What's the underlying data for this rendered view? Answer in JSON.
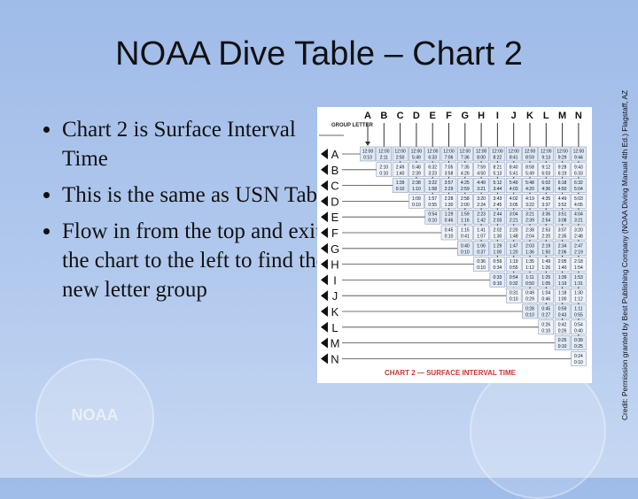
{
  "slide": {
    "title": "NOAA Dive Table – Chart 2",
    "bullets": [
      "Chart 2 is Surface Interval Time",
      "This is the same as USN Tables",
      "Flow in from the top and exit the chart to the left to find the new letter group"
    ],
    "credit": "Credit: Permission granted by Best Publishing Company (NOAA Diving Manual 4th Ed.) Flagstaff, AZ",
    "logo_text": "NOAA"
  },
  "table": {
    "group_header": "GROUP LETTER",
    "caption": "CHART 2 — SURFACE INTERVAL TIME",
    "column_letters": [
      "A",
      "B",
      "C",
      "D",
      "E",
      "F",
      "G",
      "H",
      "I",
      "J",
      "K",
      "L",
      "M",
      "N"
    ],
    "group_letters": [
      "A",
      "B",
      "C",
      "D",
      "E",
      "F",
      "G",
      "H",
      "I",
      "J",
      "K",
      "L",
      "M",
      "N"
    ],
    "rows": [
      [
        [
          "12:00",
          "0:10"
        ],
        [
          "12:00",
          "2:11"
        ],
        [
          "12:00",
          "2:50"
        ],
        [
          "12:00",
          "5:49"
        ],
        [
          "12:00",
          "6:33"
        ],
        [
          "12:00",
          "7:06"
        ],
        [
          "12:00",
          "7:36"
        ],
        [
          "12:00",
          "8:00"
        ],
        [
          "12:00",
          "8:22"
        ],
        [
          "12:00",
          "8:41"
        ],
        [
          "12:00",
          "8:59"
        ],
        [
          "12:00",
          "9:13"
        ],
        [
          "12:00",
          "9:29"
        ],
        [
          "12:00",
          "9:44"
        ]
      ],
      [
        [
          "2:10",
          "0:10"
        ],
        [
          "2:49",
          "1:40"
        ],
        [
          "5:48",
          "2:39"
        ],
        [
          "6:32",
          "3:23"
        ],
        [
          "7:05",
          "3:58"
        ],
        [
          "7:35",
          "4:26"
        ],
        [
          "7:59",
          "4:50"
        ],
        [
          "8:21",
          "5:13"
        ],
        [
          "8:40",
          "5:41"
        ],
        [
          "8:58",
          "5:49"
        ],
        [
          "9:12",
          "6:03"
        ],
        [
          "9:28",
          "6:19"
        ],
        [
          "9:43",
          "6:33"
        ]
      ],
      [
        [
          "1:39",
          "0:10"
        ],
        [
          "2:38",
          "1:10"
        ],
        [
          "3:22",
          "1:58"
        ],
        [
          "3:57",
          "2:29"
        ],
        [
          "4:25",
          "2:59"
        ],
        [
          "4:49",
          "3:21"
        ],
        [
          "5:12",
          "3:44"
        ],
        [
          "5:40",
          "4:03"
        ],
        [
          "5:48",
          "4:20"
        ],
        [
          "6:02",
          "4:36"
        ],
        [
          "6:18",
          "4:50"
        ],
        [
          "6:32",
          "5:04"
        ]
      ],
      [
        [
          "1:09",
          "0:10"
        ],
        [
          "1:57",
          "0:55"
        ],
        [
          "2:28",
          "1:30"
        ],
        [
          "2:58",
          "2:00"
        ],
        [
          "3:20",
          "2:24"
        ],
        [
          "3:43",
          "2:45"
        ],
        [
          "4:02",
          "3:05"
        ],
        [
          "4:19",
          "3:22"
        ],
        [
          "4:35",
          "3:37"
        ],
        [
          "4:49",
          "3:52"
        ],
        [
          "5:03",
          "4:05"
        ]
      ],
      [
        [
          "0:54",
          "0:10"
        ],
        [
          "1:29",
          "0:46"
        ],
        [
          "1:59",
          "1:16"
        ],
        [
          "2:23",
          "1:42"
        ],
        [
          "2:44",
          "2:03"
        ],
        [
          "3:04",
          "2:21"
        ],
        [
          "3:21",
          "2:39"
        ],
        [
          "3:36",
          "2:54"
        ],
        [
          "3:51",
          "3:08"
        ],
        [
          "4:04",
          "3:21"
        ]
      ],
      [
        [
          "0:45",
          "0:10"
        ],
        [
          "1:15",
          "0:41"
        ],
        [
          "1:41",
          "1:07"
        ],
        [
          "2:02",
          "1:30"
        ],
        [
          "2:20",
          "1:48"
        ],
        [
          "2:38",
          "2:04"
        ],
        [
          "2:53",
          "2:20"
        ],
        [
          "3:07",
          "2:35"
        ],
        [
          "3:20",
          "2:48"
        ]
      ],
      [
        [
          "0:40",
          "0:10"
        ],
        [
          "1:06",
          "0:37"
        ],
        [
          "1:29",
          "1:00"
        ],
        [
          "1:47",
          "1:20"
        ],
        [
          "2:03",
          "1:36"
        ],
        [
          "2:19",
          "1:50"
        ],
        [
          "2:34",
          "2:06"
        ],
        [
          "2:47",
          "2:19"
        ]
      ],
      [
        [
          "0:36",
          "0:10"
        ],
        [
          "0:59",
          "0:34"
        ],
        [
          "1:19",
          "0:55"
        ],
        [
          "1:35",
          "1:12"
        ],
        [
          "1:49",
          "1:26"
        ],
        [
          "2:05",
          "1:40"
        ],
        [
          "2:18",
          "1:54"
        ]
      ],
      [
        [
          "0:33",
          "0:10"
        ],
        [
          "0:54",
          "0:32"
        ],
        [
          "1:11",
          "0:50"
        ],
        [
          "1:25",
          "1:05"
        ],
        [
          "1:39",
          "1:19"
        ],
        [
          "1:53",
          "1:31"
        ]
      ],
      [
        [
          "0:31",
          "0:10"
        ],
        [
          "0:49",
          "0:29"
        ],
        [
          "1:04",
          "0:46"
        ],
        [
          "1:18",
          "1:00"
        ],
        [
          "1:30",
          "1:12"
        ]
      ],
      [
        [
          "0:28",
          "0:10"
        ],
        [
          "0:45",
          "0:27"
        ],
        [
          "0:59",
          "0:43"
        ],
        [
          "1:11",
          "0:55"
        ]
      ],
      [
        [
          "0:26",
          "0:10"
        ],
        [
          "0:42",
          "0:26"
        ],
        [
          "0:54",
          "0:40"
        ]
      ],
      [
        [
          "0:25",
          "0:10"
        ],
        [
          "0:39",
          "0:25"
        ]
      ],
      [
        [
          "0:24",
          "0:10"
        ]
      ]
    ]
  }
}
